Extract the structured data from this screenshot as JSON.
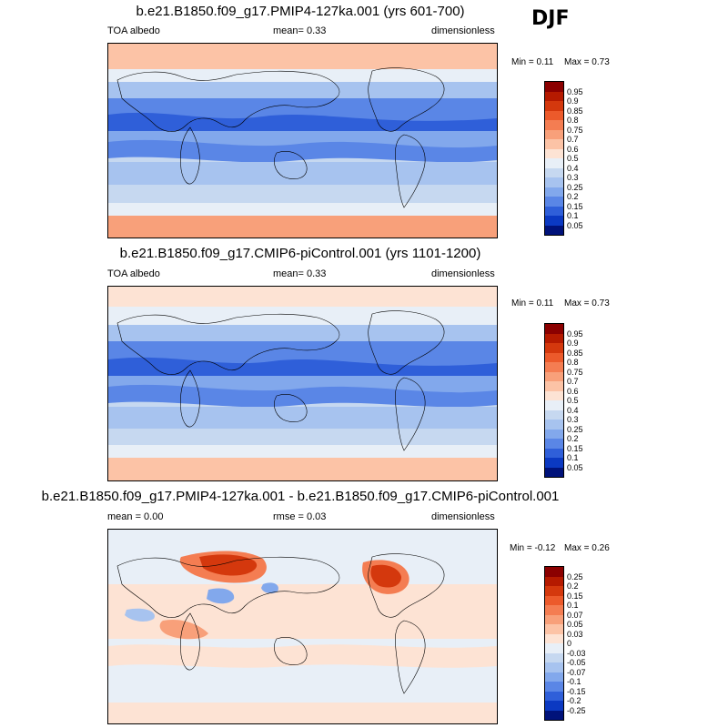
{
  "season": "DJF",
  "panels": [
    {
      "title": "b.e21.B1850.f09_g17.PMIP4-127ka.001 (yrs 601-700)",
      "left_label": "TOA albedo",
      "center_label": "mean=   0.33",
      "right_label": "dimensionless",
      "min_label": "Min =   0.11",
      "max_label": "Max =   0.73",
      "colorbar_labels": [
        "0.95",
        "0.9",
        "0.85",
        "0.8",
        "0.75",
        "0.7",
        "0.6",
        "0.5",
        "0.4",
        "0.3",
        "0.25",
        "0.2",
        "0.15",
        "0.1",
        "0.05"
      ],
      "colorbar_colors": [
        "#8b0000",
        "#b51a00",
        "#d4380d",
        "#ec5a2b",
        "#f47d52",
        "#f8a07a",
        "#fcc3a6",
        "#fde3d4",
        "#e8eff7",
        "#c6d8f0",
        "#a7c3ef",
        "#82a8ec",
        "#5a86e6",
        "#2f5fd9",
        "#0b39c2",
        "#00127a"
      ]
    },
    {
      "title": "b.e21.B1850.f09_g17.CMIP6-piControl.001 (yrs 1101-1200)",
      "left_label": "TOA albedo",
      "center_label": "mean=   0.33",
      "right_label": "dimensionless",
      "min_label": "Min =   0.11",
      "max_label": "Max =   0.73",
      "colorbar_labels": [
        "0.95",
        "0.9",
        "0.85",
        "0.8",
        "0.75",
        "0.7",
        "0.6",
        "0.5",
        "0.4",
        "0.3",
        "0.25",
        "0.2",
        "0.15",
        "0.1",
        "0.05"
      ],
      "colorbar_colors": [
        "#8b0000",
        "#b51a00",
        "#d4380d",
        "#ec5a2b",
        "#f47d52",
        "#f8a07a",
        "#fcc3a6",
        "#fde3d4",
        "#e8eff7",
        "#c6d8f0",
        "#a7c3ef",
        "#82a8ec",
        "#5a86e6",
        "#2f5fd9",
        "#0b39c2",
        "#00127a"
      ]
    },
    {
      "title": "b.e21.B1850.f09_g17.PMIP4-127ka.001 - b.e21.B1850.f09_g17.CMIP6-piControl.001",
      "left_label": "mean =   0.00",
      "center_label": "rmse =   0.03",
      "right_label": "dimensionless",
      "min_label": "Min =  -0.12",
      "max_label": "Max =   0.26",
      "colorbar_labels": [
        "0.25",
        "0.2",
        "0.15",
        "0.1",
        "0.07",
        "0.05",
        "0.03",
        "0",
        "-0.03",
        "-0.05",
        "-0.07",
        "-0.1",
        "-0.15",
        "-0.2",
        "-0.25"
      ],
      "colorbar_colors": [
        "#8b0000",
        "#b51a00",
        "#d4380d",
        "#ec5a2b",
        "#f47d52",
        "#f8a07a",
        "#fcc3a6",
        "#fde3d4",
        "#e8eff7",
        "#c6d8f0",
        "#a7c3ef",
        "#82a8ec",
        "#5a86e6",
        "#2f5fd9",
        "#0b39c2",
        "#00127a"
      ]
    }
  ]
}
